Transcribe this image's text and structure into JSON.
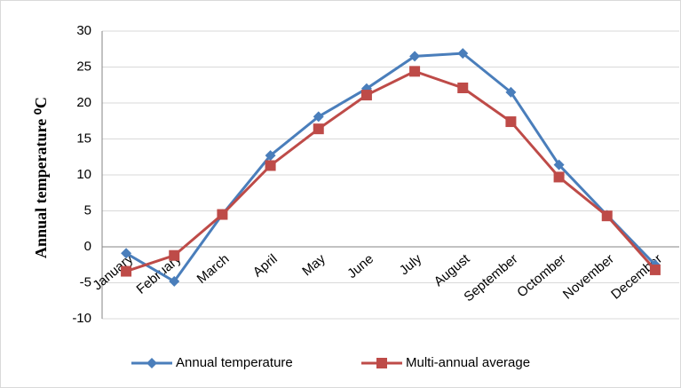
{
  "chart_data": {
    "type": "line",
    "y_label": "Annual temperature ⁰C",
    "categories": [
      "January",
      "February",
      "March",
      "April",
      "May",
      "June",
      "July",
      "August",
      "September",
      "Octomber",
      "November",
      "December"
    ],
    "series": [
      {
        "name": "Annual temperature",
        "color": "#4a7ebb",
        "marker": "diamond",
        "values": [
          -0.9,
          -4.8,
          4.5,
          12.7,
          18.1,
          22.0,
          26.5,
          26.9,
          21.5,
          11.4,
          4.4,
          -2.5
        ]
      },
      {
        "name": "Multi-annual average",
        "color": "#be4b48",
        "marker": "square",
        "values": [
          -3.4,
          -1.2,
          4.5,
          11.3,
          16.4,
          21.1,
          24.4,
          22.1,
          17.4,
          9.7,
          4.3,
          -3.2
        ]
      }
    ],
    "ylim": [
      -10,
      30
    ],
    "yticks": [
      -10,
      -5,
      0,
      5,
      10,
      15,
      20,
      25,
      30
    ],
    "grid": true,
    "legend": "bottom"
  }
}
